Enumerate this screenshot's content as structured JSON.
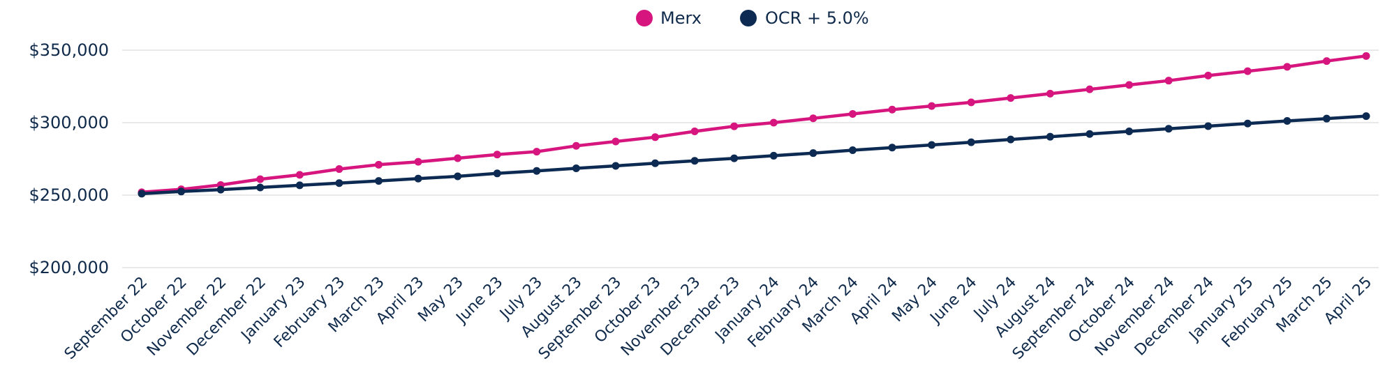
{
  "chart_data": {
    "type": "line",
    "title": "",
    "xlabel": "",
    "ylabel": "",
    "ylim": [
      200000,
      350000
    ],
    "y_ticks": [
      200000,
      250000,
      300000,
      350000
    ],
    "y_tick_labels": [
      "$200,000",
      "$250,000",
      "$300,000",
      "$350,000"
    ],
    "grid": true,
    "legend_position": "top-center",
    "categories": [
      "September 22",
      "October 22",
      "November 22",
      "December 22",
      "January 23",
      "February 23",
      "March 23",
      "April 23",
      "May 23",
      "June 23",
      "July 23",
      "August 23",
      "September 23",
      "October 23",
      "November 23",
      "December 23",
      "January 24",
      "February 24",
      "March 24",
      "April 24",
      "May 24",
      "June 24",
      "July 24",
      "August 24",
      "September 24",
      "October 24",
      "November 24",
      "December 24",
      "January 25",
      "February 25",
      "March 25",
      "April 25"
    ],
    "series": [
      {
        "name": "Merx",
        "color": "#d6157e",
        "values": [
          252000,
          254000,
          257000,
          261000,
          264000,
          268000,
          271000,
          273000,
          275500,
          278000,
          280000,
          284000,
          287000,
          290000,
          294000,
          297500,
          300000,
          303000,
          306000,
          309000,
          311500,
          314000,
          317000,
          320000,
          323000,
          326000,
          329000,
          332500,
          335500,
          338500,
          342500,
          346000
        ]
      },
      {
        "name": "OCR + 5.0%",
        "color": "#0d2b52",
        "values": [
          251000,
          252500,
          253800,
          255300,
          256800,
          258300,
          259800,
          261400,
          263000,
          265000,
          266700,
          268500,
          270200,
          272000,
          273700,
          275400,
          277200,
          279000,
          281000,
          282800,
          284600,
          286500,
          288400,
          290300,
          292200,
          294000,
          295800,
          297600,
          299400,
          301200,
          302800,
          304500
        ]
      }
    ]
  }
}
